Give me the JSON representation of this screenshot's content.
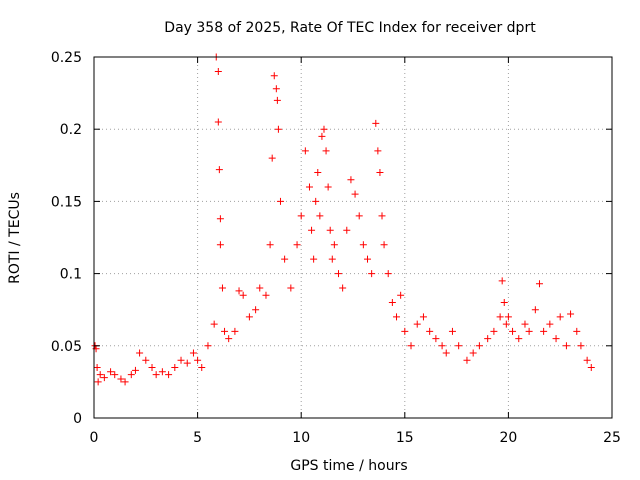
{
  "chart_data": {
    "type": "scatter",
    "title": "Day 358 of 2025, Rate Of TEC Index for receiver dprt",
    "xlabel": "GPS time / hours",
    "ylabel": "ROTI / TECUs",
    "xlim": [
      0,
      25
    ],
    "ylim": [
      0,
      0.25
    ],
    "xticks": [
      0,
      5,
      10,
      15,
      20,
      25
    ],
    "xtick_labels": [
      "0",
      "5",
      "10",
      "15",
      "20",
      "25"
    ],
    "yticks": [
      0,
      0.05,
      0.1,
      0.15,
      0.2,
      0.25
    ],
    "ytick_labels": [
      "0",
      "0.05",
      "0.1",
      "0.15",
      "0.2",
      "0.25"
    ],
    "grid": true,
    "marker": "+",
    "color": "#ff0000",
    "series": [
      {
        "x": [
          0.05,
          0.1,
          0.15,
          0.2,
          0.3,
          0.5,
          0.8,
          1.0,
          1.3,
          1.5,
          1.8,
          2.0,
          2.2,
          2.5,
          2.8,
          3.0,
          3.3,
          3.6,
          3.9,
          4.2,
          4.5,
          4.8,
          5.0,
          5.2,
          5.5,
          5.8,
          5.9,
          6.0,
          6.0,
          6.05,
          6.1,
          6.1,
          6.2,
          6.3,
          6.5,
          6.8,
          7.0,
          7.2,
          7.5,
          7.8,
          8.0,
          8.3,
          8.5,
          8.6,
          8.7,
          8.8,
          8.85,
          8.9,
          9.0,
          9.2,
          9.5,
          9.8,
          10.0,
          10.2,
          10.4,
          10.5,
          10.6,
          10.7,
          10.8,
          10.9,
          11.0,
          11.1,
          11.2,
          11.3,
          11.4,
          11.5,
          11.6,
          11.8,
          12.0,
          12.2,
          12.4,
          12.6,
          12.8,
          13.0,
          13.2,
          13.4,
          13.6,
          13.7,
          13.8,
          13.9,
          14.0,
          14.2,
          14.4,
          14.6,
          14.8,
          15.0,
          15.3,
          15.6,
          15.9,
          16.2,
          16.5,
          16.8,
          17.0,
          17.3,
          17.6,
          18.0,
          18.3,
          18.6,
          19.0,
          19.3,
          19.6,
          19.7,
          19.8,
          19.9,
          20.0,
          20.2,
          20.5,
          20.8,
          21.0,
          21.3,
          21.5,
          21.7,
          22.0,
          22.3,
          22.5,
          22.8,
          23.0,
          23.3,
          23.5,
          23.8,
          24.0
        ],
        "y": [
          0.05,
          0.048,
          0.035,
          0.025,
          0.03,
          0.028,
          0.032,
          0.03,
          0.027,
          0.025,
          0.03,
          0.033,
          0.045,
          0.04,
          0.035,
          0.03,
          0.032,
          0.03,
          0.035,
          0.04,
          0.038,
          0.045,
          0.04,
          0.035,
          0.05,
          0.065,
          0.25,
          0.24,
          0.205,
          0.172,
          0.138,
          0.12,
          0.09,
          0.06,
          0.055,
          0.06,
          0.088,
          0.085,
          0.07,
          0.075,
          0.09,
          0.085,
          0.12,
          0.18,
          0.237,
          0.228,
          0.22,
          0.2,
          0.15,
          0.11,
          0.09,
          0.12,
          0.14,
          0.185,
          0.16,
          0.13,
          0.11,
          0.15,
          0.17,
          0.14,
          0.195,
          0.2,
          0.185,
          0.16,
          0.13,
          0.11,
          0.12,
          0.1,
          0.09,
          0.13,
          0.165,
          0.155,
          0.14,
          0.12,
          0.11,
          0.1,
          0.204,
          0.185,
          0.17,
          0.14,
          0.12,
          0.1,
          0.08,
          0.07,
          0.085,
          0.06,
          0.05,
          0.065,
          0.07,
          0.06,
          0.055,
          0.05,
          0.045,
          0.06,
          0.05,
          0.04,
          0.045,
          0.05,
          0.055,
          0.06,
          0.07,
          0.095,
          0.08,
          0.065,
          0.07,
          0.06,
          0.055,
          0.065,
          0.06,
          0.075,
          0.093,
          0.06,
          0.065,
          0.055,
          0.07,
          0.05,
          0.072,
          0.06,
          0.05,
          0.04,
          0.035
        ]
      }
    ]
  }
}
